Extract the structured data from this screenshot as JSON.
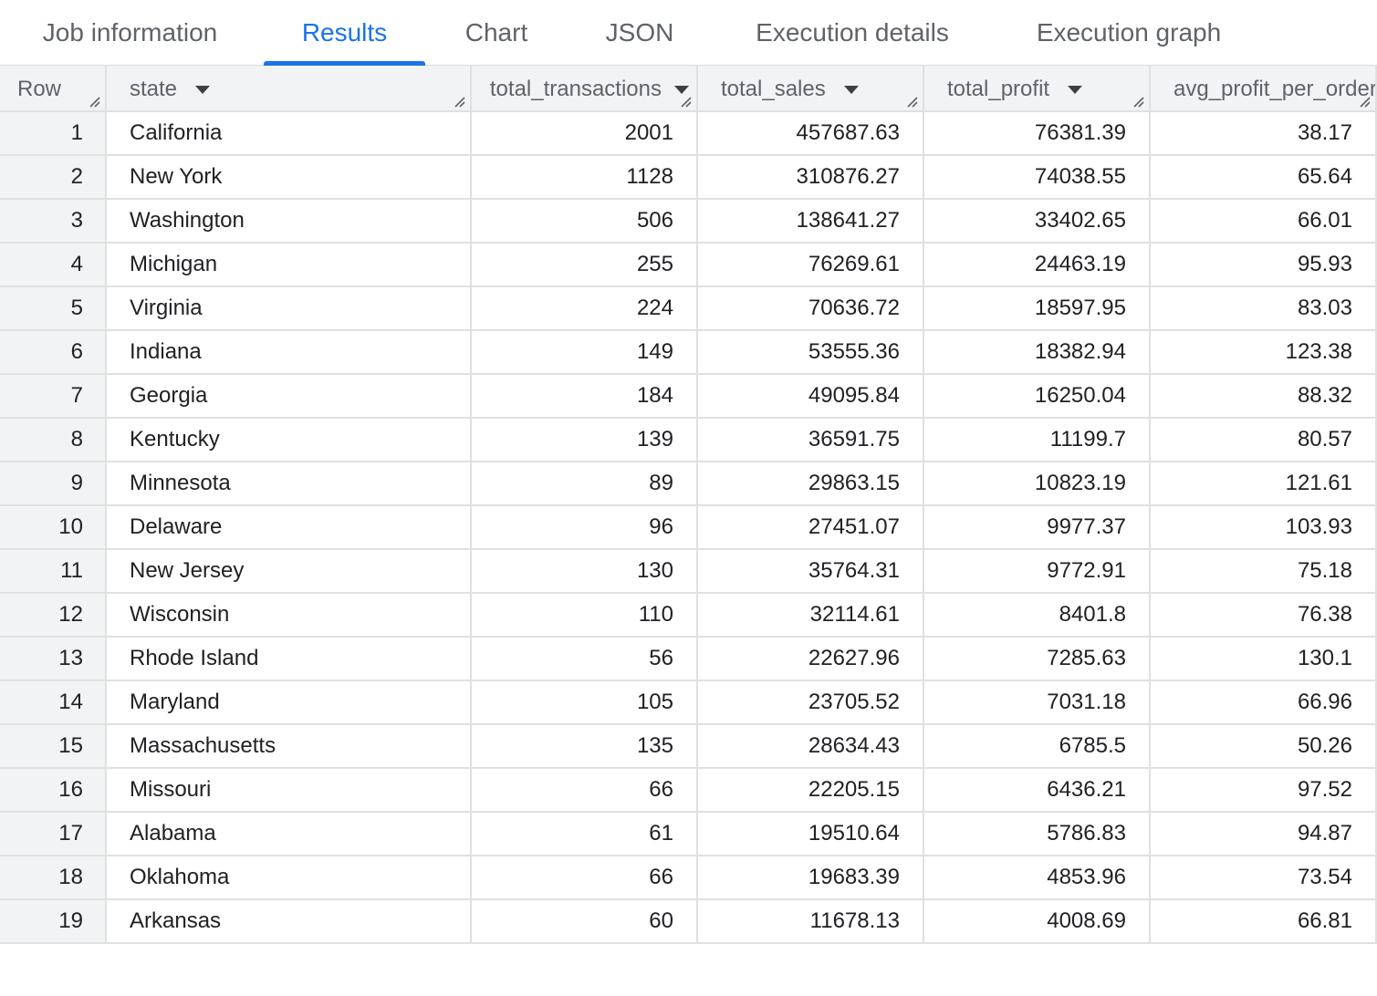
{
  "tabs": [
    {
      "label": "Job information"
    },
    {
      "label": "Results"
    },
    {
      "label": "Chart"
    },
    {
      "label": "JSON"
    },
    {
      "label": "Execution details"
    },
    {
      "label": "Execution graph"
    }
  ],
  "active_tab": "Results",
  "colors": {
    "accent": "#1a73e8",
    "header_bg": "#f1f3f4",
    "border": "#e0e0e0"
  },
  "table": {
    "columns": [
      {
        "label": "Row"
      },
      {
        "label": "state"
      },
      {
        "label": "total_transactions"
      },
      {
        "label": "total_sales"
      },
      {
        "label": "total_profit"
      },
      {
        "label": "avg_profit_per_order"
      }
    ],
    "rows": [
      [
        "1",
        "California",
        "2001",
        "457687.63",
        "76381.39",
        "38.17"
      ],
      [
        "2",
        "New York",
        "1128",
        "310876.27",
        "74038.55",
        "65.64"
      ],
      [
        "3",
        "Washington",
        "506",
        "138641.27",
        "33402.65",
        "66.01"
      ],
      [
        "4",
        "Michigan",
        "255",
        "76269.61",
        "24463.19",
        "95.93"
      ],
      [
        "5",
        "Virginia",
        "224",
        "70636.72",
        "18597.95",
        "83.03"
      ],
      [
        "6",
        "Indiana",
        "149",
        "53555.36",
        "18382.94",
        "123.38"
      ],
      [
        "7",
        "Georgia",
        "184",
        "49095.84",
        "16250.04",
        "88.32"
      ],
      [
        "8",
        "Kentucky",
        "139",
        "36591.75",
        "11199.7",
        "80.57"
      ],
      [
        "9",
        "Minnesota",
        "89",
        "29863.15",
        "10823.19",
        "121.61"
      ],
      [
        "10",
        "Delaware",
        "96",
        "27451.07",
        "9977.37",
        "103.93"
      ],
      [
        "11",
        "New Jersey",
        "130",
        "35764.31",
        "9772.91",
        "75.18"
      ],
      [
        "12",
        "Wisconsin",
        "110",
        "32114.61",
        "8401.8",
        "76.38"
      ],
      [
        "13",
        "Rhode Island",
        "56",
        "22627.96",
        "7285.63",
        "130.1"
      ],
      [
        "14",
        "Maryland",
        "105",
        "23705.52",
        "7031.18",
        "66.96"
      ],
      [
        "15",
        "Massachusetts",
        "135",
        "28634.43",
        "6785.5",
        "50.26"
      ],
      [
        "16",
        "Missouri",
        "66",
        "22205.15",
        "6436.21",
        "97.52"
      ],
      [
        "17",
        "Alabama",
        "61",
        "19510.64",
        "5786.83",
        "94.87"
      ],
      [
        "18",
        "Oklahoma",
        "66",
        "19683.39",
        "4853.96",
        "73.54"
      ],
      [
        "19",
        "Arkansas",
        "60",
        "11678.13",
        "4008.69",
        "66.81"
      ]
    ]
  }
}
